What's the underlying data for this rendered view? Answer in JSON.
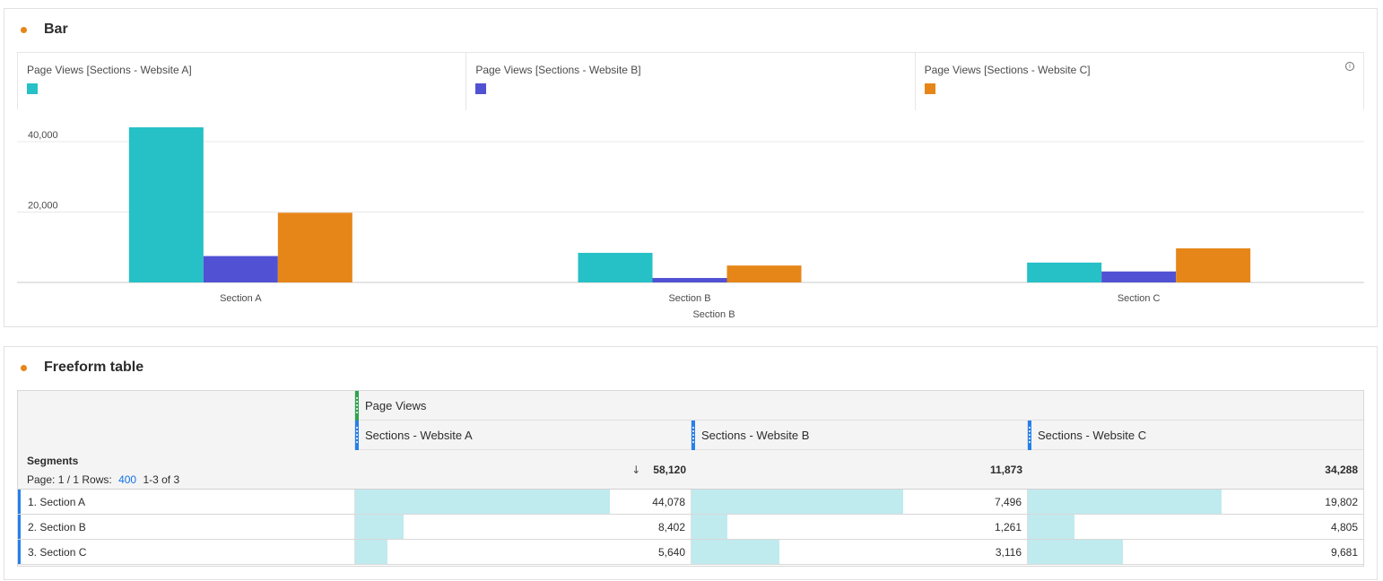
{
  "bar_panel": {
    "title": "Bar",
    "dot_color": "#e68619",
    "info_icon": "info-icon"
  },
  "chart_data": {
    "type": "bar",
    "categories": [
      "Section A",
      "Section B",
      "Section C"
    ],
    "x_group_label": "Section B",
    "series": [
      {
        "name": "Page Views [Sections - Website A]",
        "color": "#26c0c7",
        "values": [
          44078,
          8402,
          5640
        ]
      },
      {
        "name": "Page Views [Sections - Website B]",
        "color": "#5151d3",
        "values": [
          7496,
          1261,
          3116
        ]
      },
      {
        "name": "Page Views [Sections - Website C]",
        "color": "#e68619",
        "values": [
          19802,
          4805,
          9681
        ]
      }
    ],
    "y_ticks": [
      {
        "value": 20000,
        "label": "20,000"
      },
      {
        "value": 40000,
        "label": "40,000"
      }
    ],
    "ylim": [
      0,
      44078
    ],
    "grid": true,
    "legend_position": "top"
  },
  "table_panel": {
    "title": "Freeform table",
    "dot_color": "#e68619",
    "metric_header": "Page Views",
    "segment_columns": [
      "Sections - Website A",
      "Sections - Website B",
      "Sections - Website C"
    ],
    "dimension_label": "Segments",
    "pager": {
      "prefix": "Page: 1 / 1 Rows:",
      "rows": "400",
      "range": "1-3 of 3"
    },
    "sort_icon": "sort-descending-icon",
    "totals": [
      "58,120",
      "11,873",
      "34,288"
    ],
    "rows": [
      {
        "label": "1.  Section A",
        "values": [
          "44,078",
          "7,496",
          "19,802"
        ],
        "fractions": [
          0.7584,
          0.6313,
          0.5775
        ]
      },
      {
        "label": "2.  Section B",
        "values": [
          "8,402",
          "1,261",
          "4,805"
        ],
        "fractions": [
          0.1446,
          0.1062,
          0.1401
        ]
      },
      {
        "label": "3.  Section C",
        "values": [
          "5,640",
          "3,116",
          "9,681"
        ],
        "fractions": [
          0.097,
          0.2624,
          0.2823
        ]
      }
    ]
  }
}
